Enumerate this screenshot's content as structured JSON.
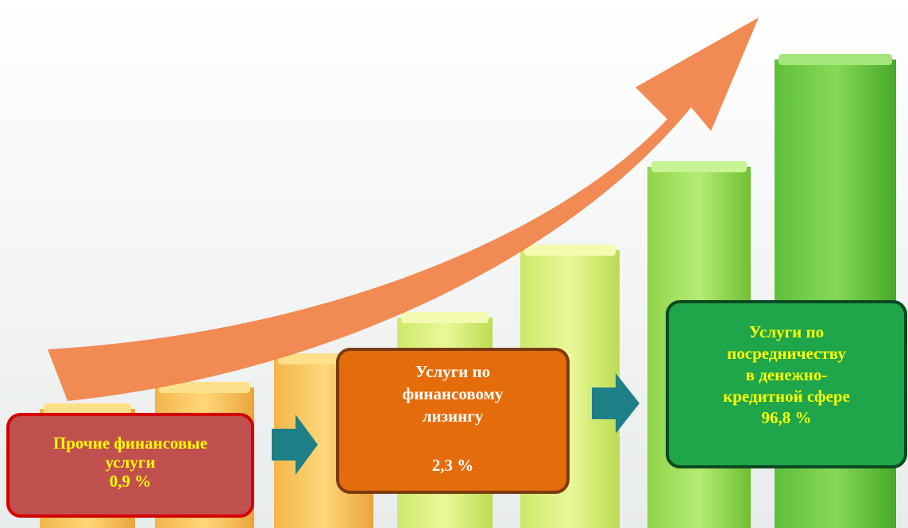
{
  "boxes": [
    {
      "label_lines": [
        "Прочие финансовые",
        "услуги"
      ],
      "value": "0,9 %"
    },
    {
      "label_lines": [
        "Услуги по",
        "финансовому",
        "лизингу"
      ],
      "value": "2,3 %"
    },
    {
      "label_lines": [
        "Услуги по",
        "посредничеству",
        "в денежно-",
        "кредитной сфере"
      ],
      "value": "96,8 %"
    }
  ]
}
